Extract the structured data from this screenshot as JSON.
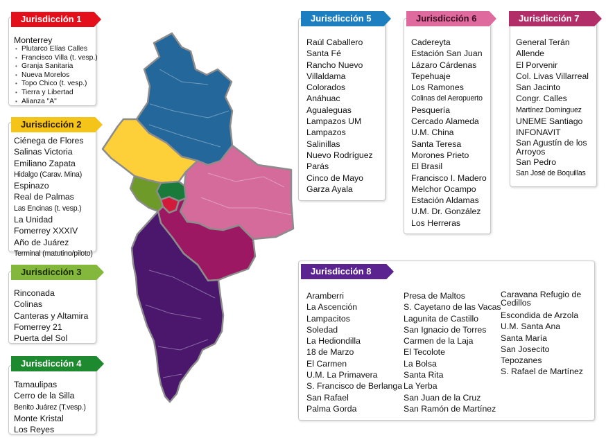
{
  "colors": {
    "j1": "#e3101c",
    "j2": "#f4c518",
    "j3": "#83b83c",
    "j4": "#1d8a2f",
    "j5": "#1d7fc0",
    "j6": "#de6a9e",
    "j7": "#b22e69",
    "j8": "#5b2390",
    "map_j1": "#d21a3a",
    "map_j2": "#fdd039",
    "map_j3": "#6e9a2a",
    "map_j4": "#1a7a3a",
    "map_j5": "#23679b",
    "map_j6": "#d46b9a",
    "map_j7": "#9c1862",
    "map_j8": "#4a176d",
    "map_border": "#8c8c8c"
  },
  "j1": {
    "title": "Jurisdicción 1",
    "head": "Monterrey",
    "items": [
      "Plutarco Elías Calles",
      "Francisco Villa (t. vesp.)",
      "Granja Sanitaria",
      "Nueva Morelos",
      "Topo Chico  (t. vesp.)",
      "Tierra y Libertad",
      "Alianza \"A\""
    ]
  },
  "j2": {
    "title": "Jurisdicción 2",
    "items": [
      "Ciénega de Flores",
      "Salinas Victoria",
      "Emiliano Zapata",
      "Hidalgo (Carav. Mina)",
      "Espinazo",
      "Real de Palmas",
      "Las Encinas (t. vesp.)",
      "La Unidad",
      "Fomerrey XXXIV",
      "Año de Juárez",
      "Terminal (matutino/piloto)"
    ]
  },
  "j3": {
    "title": "Jurisdicción 3",
    "items": [
      "Rinconada",
      "Colinas",
      "Canteras y Altamira",
      "Fomerrey 21",
      "Puerta del Sol"
    ]
  },
  "j4": {
    "title": "Jurisdicción 4",
    "items": [
      "Tamaulipas",
      "Cerro de la Silla",
      "Benito Juárez (T.vesp.)",
      "Monte Kristal",
      "Los Reyes"
    ]
  },
  "j5": {
    "title": "Jurisdicción 5",
    "items": [
      "Raúl Caballero",
      "Santa Fé",
      "Rancho Nuevo",
      "Villaldama",
      "Colorados",
      "Anáhuac",
      "Agualeguas",
      "Lampazos UM",
      "Lampazos",
      "Salinillas",
      "Nuevo Rodríguez",
      "Parás",
      "Cinco de Mayo",
      "Garza Ayala"
    ]
  },
  "j6": {
    "title": "Jurisdicción 6",
    "items": [
      "Cadereyta",
      "Estación San Juan",
      "Lázaro Cárdenas",
      "Tepehuaje",
      "Los Ramones",
      "Colinas del Aeropuerto",
      "Pesquería",
      "Cercado Alameda",
      "U.M. China",
      "Santa Teresa",
      "Morones Prieto",
      "El Brasil",
      "Francisco I. Madero",
      "Melchor Ocampo",
      "Estación Aldamas",
      "U.M. Dr. González",
      "Los Herreras"
    ]
  },
  "j7": {
    "title": "Jurisdicción 7",
    "items": [
      "General Terán",
      "Allende",
      "El Porvenir",
      "Col. Livas Villarreal",
      "San Jacinto",
      "Congr. Calles",
      "Martínez Domínguez",
      "UNEME Santiago",
      "INFONAVIT",
      "San Agustín de los Arroyos",
      "San Pedro",
      "San José de Boquillas"
    ]
  },
  "j8": {
    "title": "Jurisdicción 8",
    "col1": [
      "Aramberri",
      "La Ascención",
      "Lampacitos",
      "Soledad",
      "La Hediondilla",
      "18 de Marzo",
      "El Carmen",
      "U.M. La Primavera",
      "S. Francisco de Berlanga",
      "San Rafael",
      "Palma Gorda"
    ],
    "col2": [
      "Presa de Maltos",
      "S. Cayetano de las Vacas",
      "Lagunita de Castillo",
      "San Ignacio de Torres",
      "Carmen de la Laja",
      "El Tecolote",
      "La Bolsa",
      "Santa Rita",
      "La Yerba",
      "San Juan de la Cruz",
      "San Ramón de Martínez"
    ],
    "col3": [
      "Caravana Refugio de Cedillos",
      "Escondida de Arzola",
      "U.M. Santa Ana",
      "Santa María",
      "San Josecito",
      "Tepozanes",
      "S. Rafael de Martínez"
    ]
  }
}
